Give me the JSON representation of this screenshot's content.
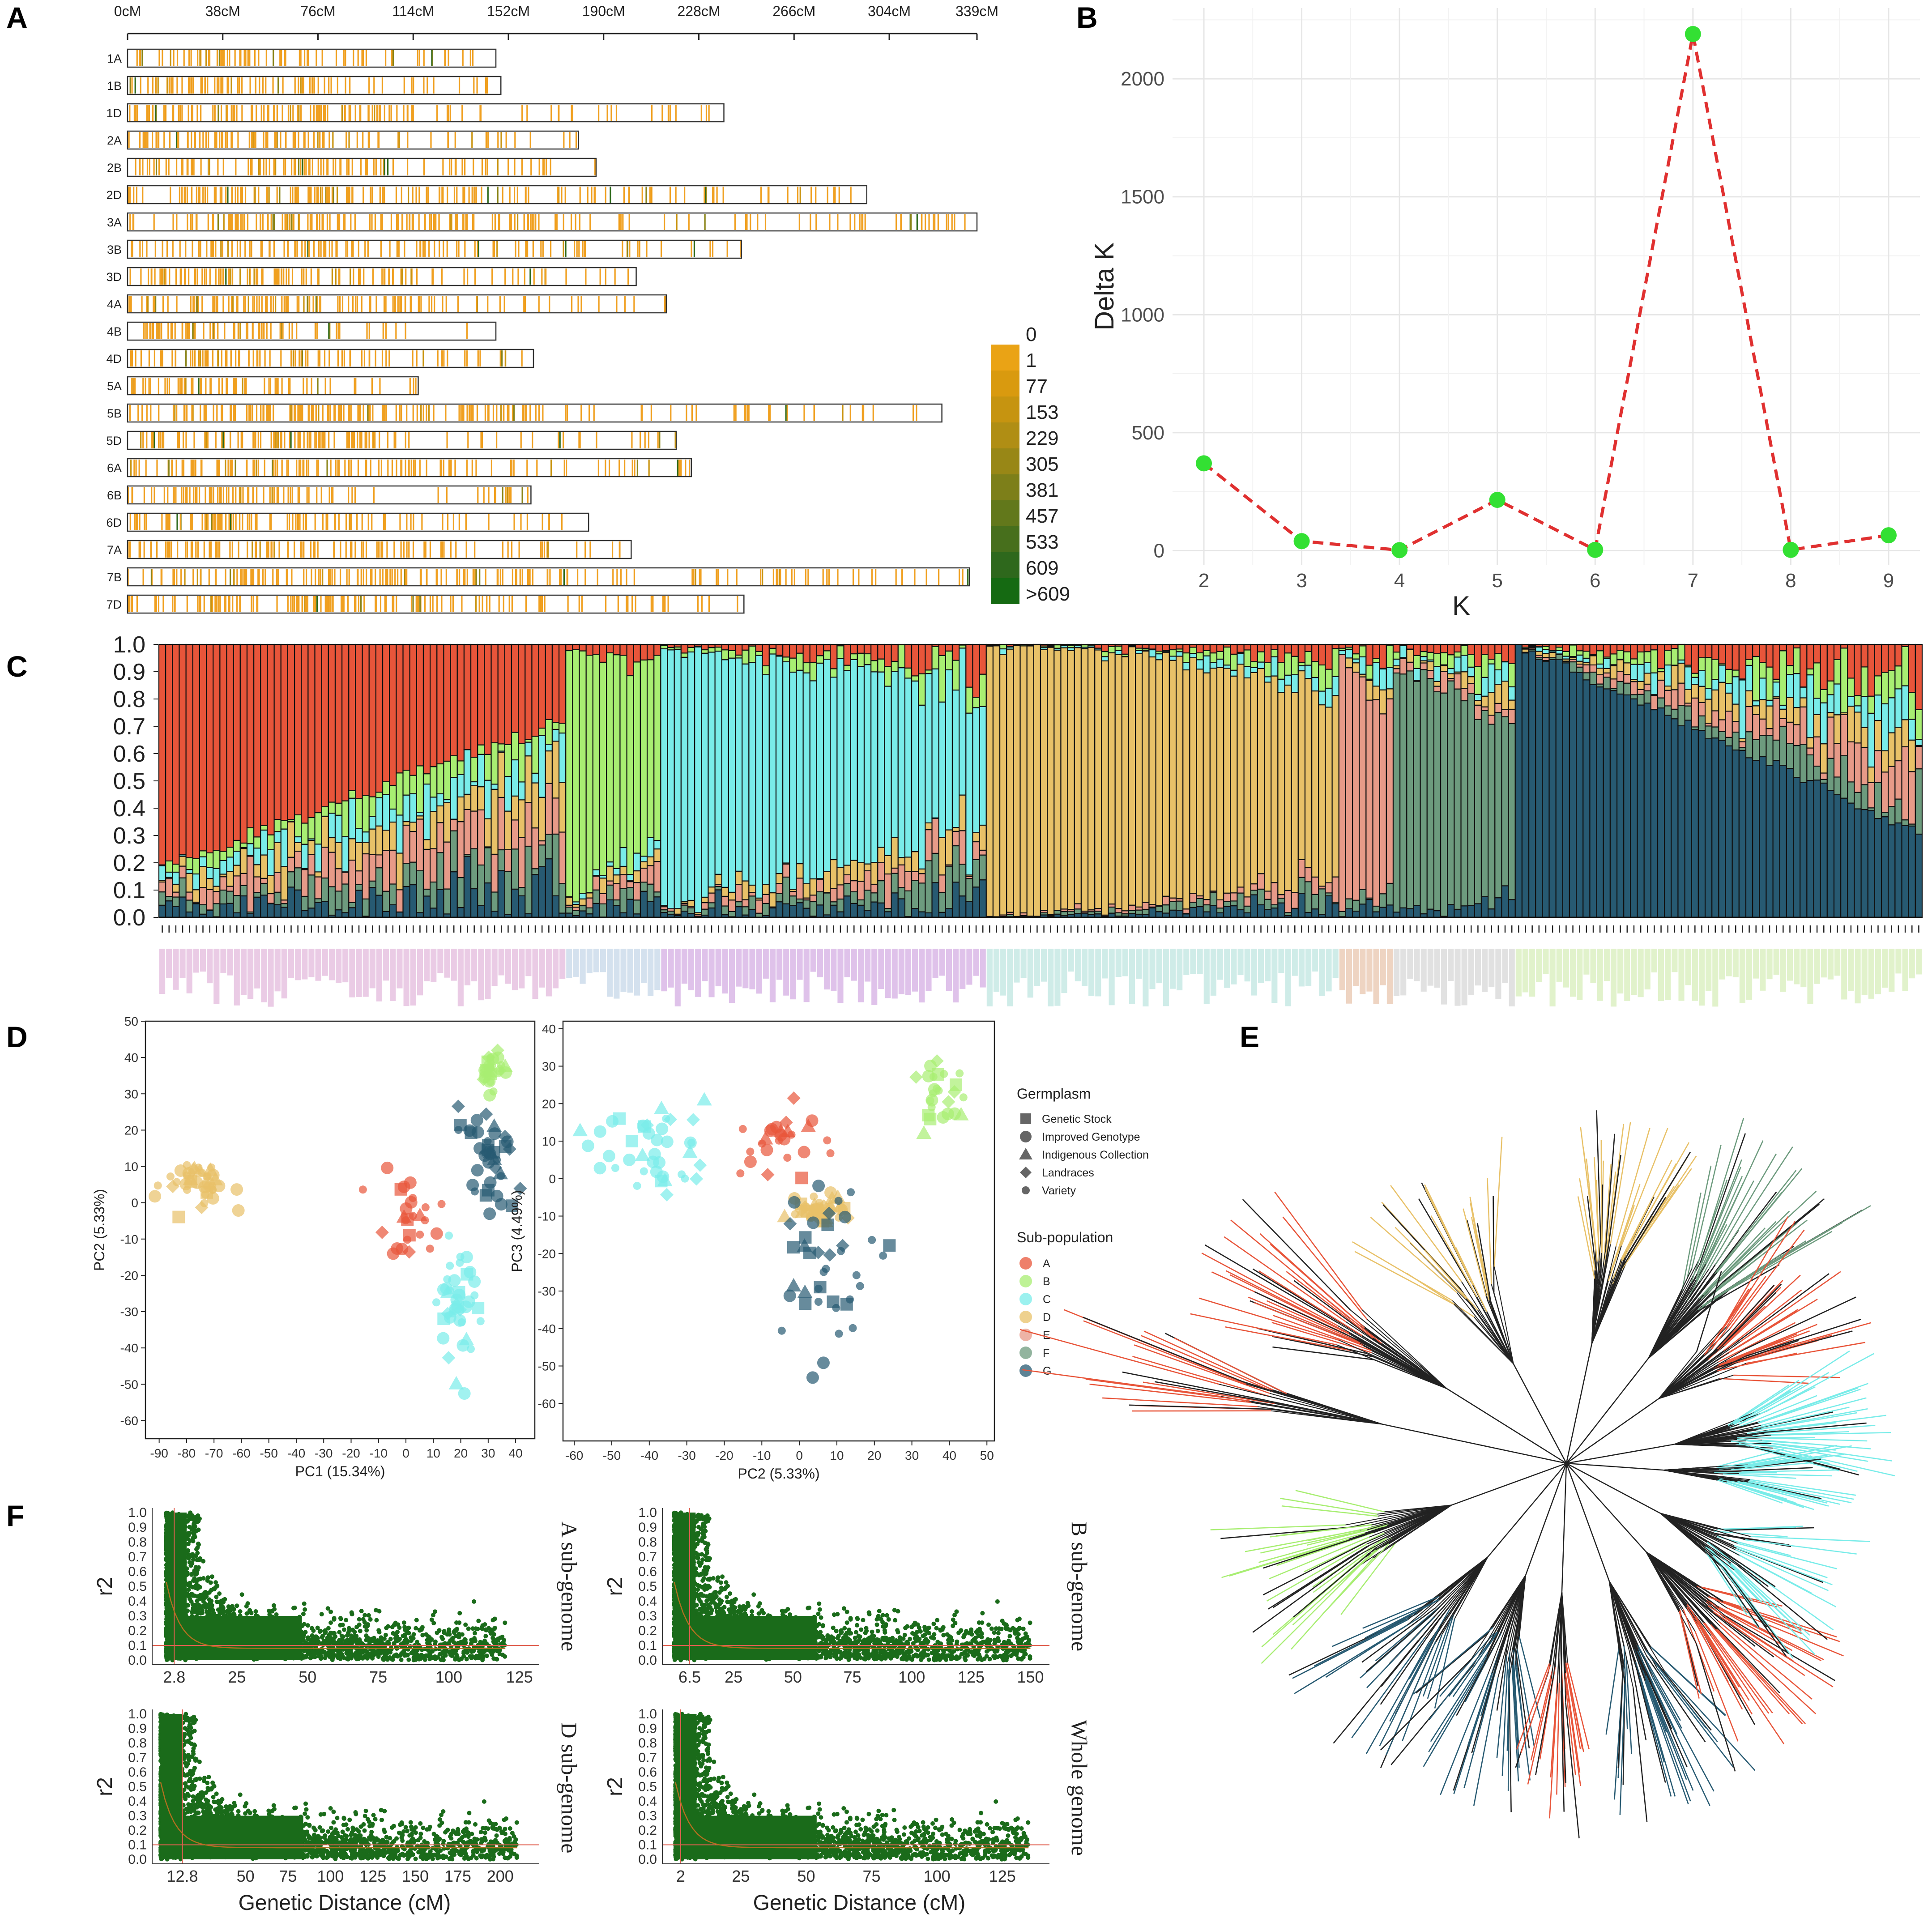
{
  "panel_labels": {
    "a": "A",
    "b": "B",
    "c": "C",
    "d": "D",
    "e": "E",
    "f": "F"
  },
  "colors": {
    "A": "#e8553a",
    "B": "#a8ee72",
    "C": "#79ece9",
    "D": "#e8c168",
    "E": "#e79a88",
    "F": "#6d9b7e",
    "G": "#275a72",
    "orange": "#f0a020",
    "green_dot": "#33e033",
    "red_dash": "#e03030",
    "ld_green": "#1a6b1a",
    "ld_red": "#e06050"
  },
  "chart_data": [
    {
      "id": "A",
      "type": "heatmap",
      "title": "",
      "axis_ticks": [
        "0cM",
        "38cM",
        "76cM",
        "114cM",
        "152cM",
        "190cM",
        "228cM",
        "266cM",
        "304cM",
        "339cM"
      ],
      "axis_range": [
        0,
        339
      ],
      "chromosomes": [
        {
          "name": "1A",
          "length": 147
        },
        {
          "name": "1B",
          "length": 149
        },
        {
          "name": "1D",
          "length": 238
        },
        {
          "name": "2A",
          "length": 180
        },
        {
          "name": "2B",
          "length": 187
        },
        {
          "name": "2D",
          "length": 295
        },
        {
          "name": "3A",
          "length": 339
        },
        {
          "name": "3B",
          "length": 245
        },
        {
          "name": "3D",
          "length": 203
        },
        {
          "name": "4A",
          "length": 215
        },
        {
          "name": "4B",
          "length": 147
        },
        {
          "name": "4D",
          "length": 162
        },
        {
          "name": "5A",
          "length": 116
        },
        {
          "name": "5B",
          "length": 325
        },
        {
          "name": "5D",
          "length": 219
        },
        {
          "name": "6A",
          "length": 225
        },
        {
          "name": "6B",
          "length": 161
        },
        {
          "name": "6D",
          "length": 184
        },
        {
          "name": "7A",
          "length": 201
        },
        {
          "name": "7B",
          "length": 336
        },
        {
          "name": "7D",
          "length": 246
        }
      ],
      "legend": [
        "0",
        "1",
        "77",
        "153",
        "229",
        "305",
        "381",
        "457",
        "533",
        "609",
        ">609"
      ],
      "legend_colors": [
        "#f5a81e",
        "#eaa315",
        "#d99a0f",
        "#c69410",
        "#b08e14",
        "#988716",
        "#7d7f19",
        "#62781b",
        "#476f1c",
        "#2e681c",
        "#156a12"
      ]
    },
    {
      "id": "B",
      "type": "line",
      "title": "",
      "x": [
        2,
        3,
        4,
        5,
        6,
        7,
        8,
        9
      ],
      "y": [
        370,
        40,
        2,
        215,
        3,
        2190,
        3,
        65
      ],
      "xlabel": "K",
      "ylabel": "Delta K",
      "xticks": [
        "2",
        "3",
        "4",
        "5",
        "6",
        "7",
        "8",
        "9"
      ],
      "yticks": [
        "0",
        "500",
        "1000",
        "1500",
        "2000"
      ],
      "ylim": [
        -60,
        2300
      ]
    },
    {
      "id": "C",
      "type": "bar",
      "title": "",
      "yticks": [
        "0.0",
        "0.1",
        "0.2",
        "0.3",
        "0.4",
        "0.5",
        "0.6",
        "0.7",
        "0.8",
        "0.9",
        "1.0"
      ],
      "ylim": [
        0,
        1
      ],
      "groups": [
        {
          "name": "A",
          "count": 60
        },
        {
          "name": "B",
          "count": 14
        },
        {
          "name": "C",
          "count": 48
        },
        {
          "name": "D",
          "count": 52
        },
        {
          "name": "E",
          "count": 8
        },
        {
          "name": "F",
          "count": 18
        },
        {
          "name": "G",
          "count": 60
        }
      ],
      "series": [
        "A",
        "B",
        "C",
        "D",
        "E",
        "F",
        "G"
      ]
    },
    {
      "id": "D1",
      "type": "scatter",
      "title": "",
      "xlabel": "PC1 (15.34%)",
      "ylabel": "PC2 (5.33%)",
      "xticks": [
        "-90",
        "-80",
        "-70",
        "-60",
        "-50",
        "-40",
        "-30",
        "-20",
        "-10",
        "0",
        "10",
        "20",
        "30",
        "40"
      ],
      "yticks": [
        "50",
        "40",
        "30",
        "20",
        "10",
        "0",
        "-10",
        "-20",
        "-30",
        "-40",
        "-50",
        "-60"
      ],
      "xlim": [
        -95,
        47
      ],
      "ylim": [
        -65,
        50
      ],
      "clusters": [
        {
          "group": "D",
          "center": [
            -75,
            6
          ],
          "spread": [
            10,
            6
          ]
        },
        {
          "group": "A",
          "center": [
            2,
            -4
          ],
          "spread": [
            12,
            12
          ]
        },
        {
          "group": "C",
          "center": [
            18,
            -30
          ],
          "spread": [
            6,
            18
          ]
        },
        {
          "group": "G",
          "center": [
            30,
            10
          ],
          "spread": [
            8,
            14
          ]
        },
        {
          "group": "B",
          "center": [
            32,
            36
          ],
          "spread": [
            4,
            5
          ]
        }
      ]
    },
    {
      "id": "D2",
      "type": "scatter",
      "title": "",
      "xlabel": "PC2 (5.33%)",
      "ylabel": "PC3 (4.49%)",
      "xticks": [
        "-60",
        "-50",
        "-40",
        "-30",
        "-20",
        "-10",
        "0",
        "10",
        "20",
        "30",
        "40",
        "50"
      ],
      "yticks": [
        "40",
        "30",
        "20",
        "10",
        "0",
        "-10",
        "-20",
        "-30",
        "-40",
        "-50",
        "-60"
      ],
      "xlim": [
        -63,
        52
      ],
      "ylim": [
        -70,
        42
      ],
      "clusters": [
        {
          "group": "C",
          "center": [
            -40,
            8
          ],
          "spread": [
            12,
            10
          ]
        },
        {
          "group": "A",
          "center": [
            -5,
            10
          ],
          "spread": [
            10,
            9
          ]
        },
        {
          "group": "D",
          "center": [
            5,
            -8
          ],
          "spread": [
            6,
            4
          ]
        },
        {
          "group": "G",
          "center": [
            8,
            -25
          ],
          "spread": [
            10,
            20
          ]
        },
        {
          "group": "B",
          "center": [
            38,
            22
          ],
          "spread": [
            6,
            7
          ]
        }
      ]
    },
    {
      "id": "F",
      "type": "scatter",
      "title": "",
      "yticks": [
        "0.0",
        "0.1",
        "0.2",
        "0.3",
        "0.4",
        "0.5",
        "0.6",
        "0.7",
        "0.8",
        "0.9",
        "1.0"
      ],
      "ylabel": "r2",
      "xlabel": "Genetic Distance (cM)",
      "panels": [
        {
          "name": "A sub-genome",
          "xticks": [
            "2.8",
            "25",
            "50",
            "75",
            "100",
            "125"
          ],
          "xvals": [
            2.8,
            25,
            50,
            75,
            100,
            125
          ],
          "xlim": [
            -5,
            132
          ],
          "cut": 2.8,
          "maxd": 120
        },
        {
          "name": "B sub-genome",
          "xticks": [
            "6.5",
            "25",
            "50",
            "75",
            "100",
            "125",
            "150"
          ],
          "xvals": [
            6.5,
            25,
            50,
            75,
            100,
            125,
            150
          ],
          "xlim": [
            -5,
            158
          ],
          "cut": 6.5,
          "maxd": 150
        },
        {
          "name": "D sub-genome",
          "xticks": [
            "12.8",
            "50",
            "75",
            "100",
            "125",
            "150",
            "175",
            "200"
          ],
          "xvals": [
            12.8,
            50,
            75,
            100,
            125,
            150,
            175,
            200
          ],
          "xlim": [
            -5,
            223
          ],
          "cut": 12.8,
          "maxd": 210
        },
        {
          "name": "Whole genome",
          "xticks": [
            "2",
            "25",
            "50",
            "75",
            "100",
            "125"
          ],
          "xvals": [
            2,
            25,
            50,
            75,
            100,
            125
          ],
          "xlim": [
            -5,
            143
          ],
          "cut": 2,
          "maxd": 135
        }
      ]
    }
  ],
  "legend_d": {
    "germplasm_title": "Germplasm",
    "germplasm": [
      {
        "label": "Genetic Stock",
        "shape": "square"
      },
      {
        "label": "Improved Genotype",
        "shape": "circle"
      },
      {
        "label": "Indigenous Collection",
        "shape": "triangle"
      },
      {
        "label": "Landraces",
        "shape": "diamond"
      },
      {
        "label": "Variety",
        "shape": "small-circle"
      }
    ],
    "subpop_title": "Sub-population",
    "subpop": [
      {
        "label": "A",
        "color": "#e8553a"
      },
      {
        "label": "B",
        "color": "#a8ee72"
      },
      {
        "label": "C",
        "color": "#79ece9"
      },
      {
        "label": "D",
        "color": "#e8c168"
      },
      {
        "label": "E",
        "color": "#e79a88"
      },
      {
        "label": "F",
        "color": "#6d9b7e"
      },
      {
        "label": "G",
        "color": "#275a72"
      }
    ]
  }
}
